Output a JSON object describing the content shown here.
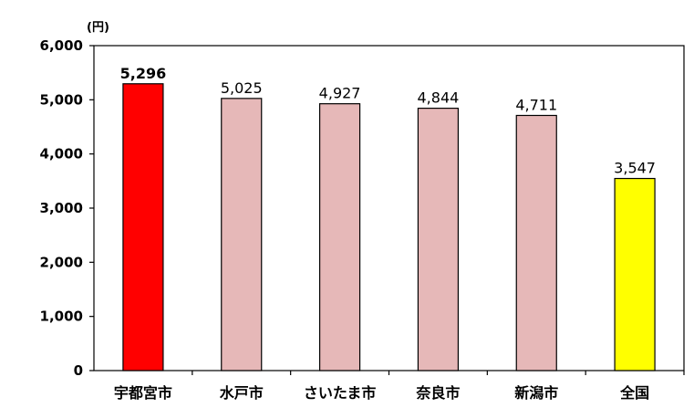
{
  "chart_data": {
    "type": "bar",
    "unit_label": "(円)",
    "categories": [
      "宇都宮市",
      "水戸市",
      "さいたま市",
      "奈良市",
      "新潟市",
      "全国"
    ],
    "values": [
      5296,
      5025,
      4927,
      4844,
      4711,
      3547
    ],
    "data_labels": [
      "5,296",
      "5,025",
      "4,927",
      "4,844",
      "4,711",
      "3,547"
    ],
    "highlight_label_index": 0,
    "bar_colors": [
      "#ff0000",
      "#e6b8b8",
      "#e6b8b8",
      "#e6b8b8",
      "#e6b8b8",
      "#ffff00"
    ],
    "y_ticks": [
      0,
      1000,
      2000,
      3000,
      4000,
      5000,
      6000
    ],
    "y_tick_labels": [
      "0",
      "1,000",
      "2,000",
      "3,000",
      "4,000",
      "5,000",
      "6,000"
    ],
    "ylim": [
      0,
      6000
    ],
    "grid": false,
    "legend": "none"
  }
}
